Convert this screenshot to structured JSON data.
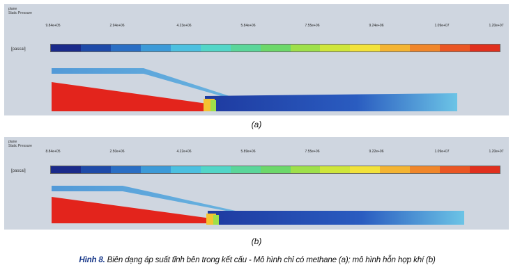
{
  "panel_a": {
    "corner_text_line1": "plane",
    "corner_text_line2": "Static Pressure",
    "unit": "[pascal]",
    "ticks": [
      "9.84e+05",
      "2.94e+06",
      "4.23e+06",
      "5.84e+06",
      "7.55e+06",
      "9.24e+06",
      "1.09e+07",
      "1.20e+07"
    ],
    "caption": "(a)"
  },
  "panel_b": {
    "corner_text_line1": "plane",
    "corner_text_line2": "Static Pressure",
    "unit": "[pascal]",
    "ticks": [
      "8.84e+05",
      "2.50e+06",
      "4.22e+06",
      "5.89e+06",
      "7.55e+06",
      "9.22e+06",
      "1.09e+07",
      "1.20e+07"
    ],
    "caption": "(b)"
  },
  "colormap": [
    "#1a2a8a",
    "#1e4aa8",
    "#2a6ec4",
    "#3c9ad8",
    "#4cc0e0",
    "#52d6c8",
    "#5ad69a",
    "#6cd86a",
    "#9ee04a",
    "#cfe63a",
    "#f2e23a",
    "#f4b432",
    "#f0862a",
    "#ea5624",
    "#e0301e"
  ],
  "figure_caption": {
    "label": "Hình 8.",
    "text": "Biên dạng áp suất tĩnh bên trong kết cấu - Mô hình chỉ có methane (a); mô hình hỗn hợp khí (b)"
  }
}
